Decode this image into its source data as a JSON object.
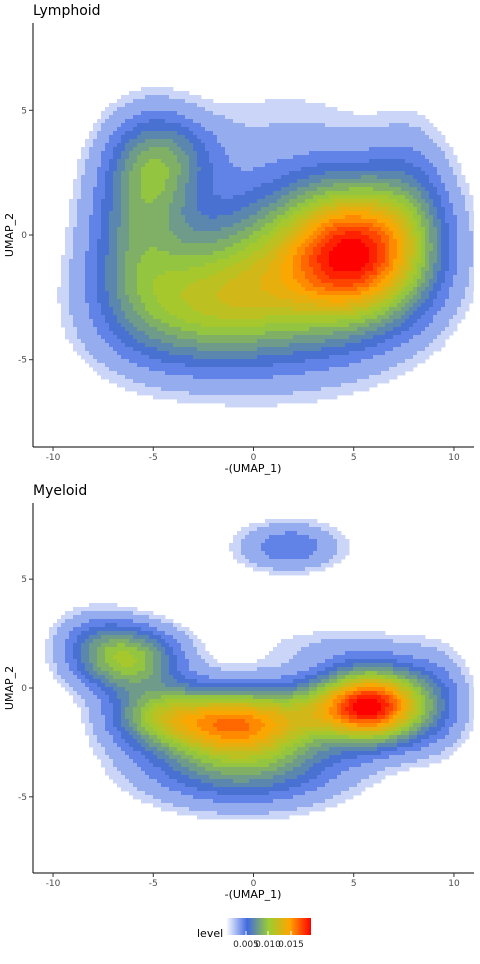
{
  "chart_data": [
    {
      "type": "density-contour",
      "title": "Lymphoid",
      "xlabel": "-(UMAP_1)",
      "ylabel": "UMAP_2",
      "xlim": [
        -11,
        11
      ],
      "ylim": [
        -8.5,
        8.5
      ],
      "xticks": [
        -10,
        -5,
        0,
        5,
        10
      ],
      "yticks": [
        -5,
        0,
        5
      ],
      "xtick_labels": [
        "-10",
        "-5",
        "0",
        "5",
        "10"
      ],
      "ytick_labels": [
        "-5",
        "0",
        "5"
      ],
      "components": [
        {
          "x": 5.2,
          "y": -0.7,
          "sx": 2.3,
          "sy": 1.8,
          "w": 1.0
        },
        {
          "x": 2.0,
          "y": -1.3,
          "sx": 3.5,
          "sy": 2.4,
          "w": 0.48
        },
        {
          "x": -1.5,
          "y": -2.6,
          "sx": 3.0,
          "sy": 1.7,
          "w": 0.4
        },
        {
          "x": -4.5,
          "y": -3.2,
          "sx": 2.6,
          "sy": 1.6,
          "w": 0.2
        },
        {
          "x": -5.0,
          "y": 2.7,
          "sx": 1.6,
          "sy": 1.5,
          "w": 0.4
        },
        {
          "x": -5.8,
          "y": -0.3,
          "sx": 1.7,
          "sy": 2.0,
          "w": 0.32
        },
        {
          "x": -3.2,
          "y": 3.3,
          "sx": 1.6,
          "sy": 1.0,
          "w": 0.1
        },
        {
          "x": 7.8,
          "y": 1.0,
          "sx": 1.4,
          "sy": 2.2,
          "w": 0.18
        },
        {
          "x": 1.5,
          "y": 4.6,
          "sx": 3.0,
          "sy": 1.4,
          "w": 0.045
        }
      ]
    },
    {
      "type": "density-contour",
      "title": "Myeloid",
      "xlabel": "-(UMAP_1)",
      "ylabel": "UMAP_2",
      "xlim": [
        -11,
        11
      ],
      "ylim": [
        -8.5,
        8.5
      ],
      "xticks": [
        -10,
        -5,
        0,
        5,
        10
      ],
      "yticks": [
        -5,
        0,
        5
      ],
      "xtick_labels": [
        "-10",
        "-5",
        "0",
        "5",
        "10"
      ],
      "ytick_labels": [
        "-5",
        "0",
        "5"
      ],
      "components": [
        {
          "x": 6.0,
          "y": -0.8,
          "sx": 1.7,
          "sy": 1.1,
          "w": 1.0
        },
        {
          "x": 3.5,
          "y": -0.9,
          "sx": 1.8,
          "sy": 0.9,
          "w": 0.25
        },
        {
          "x": -1.0,
          "y": -1.5,
          "sx": 2.6,
          "sy": 1.0,
          "w": 0.72
        },
        {
          "x": -4.8,
          "y": -1.2,
          "sx": 1.6,
          "sy": 0.9,
          "w": 0.3
        },
        {
          "x": -0.5,
          "y": -3.3,
          "sx": 3.2,
          "sy": 1.3,
          "w": 0.4
        },
        {
          "x": -6.3,
          "y": 1.3,
          "sx": 1.7,
          "sy": 1.0,
          "w": 0.5
        },
        {
          "x": -8.0,
          "y": 2.4,
          "sx": 1.3,
          "sy": 0.9,
          "w": 0.1
        },
        {
          "x": 1.8,
          "y": 6.5,
          "sx": 1.7,
          "sy": 0.75,
          "w": 0.18
        },
        {
          "x": 4.0,
          "y": 1.8,
          "sx": 3.0,
          "sy": 0.8,
          "w": 0.06
        },
        {
          "x": 9.0,
          "y": -0.6,
          "sx": 1.2,
          "sy": 1.5,
          "w": 0.14
        }
      ]
    }
  ],
  "legend": {
    "title": "level",
    "placement": "bottom",
    "labels": [
      "0.005",
      "0.010",
      "0.015"
    ],
    "stops": [
      "#ffffff",
      "#4169e1",
      "#9acd32",
      "#ffa500",
      "#ff0000"
    ]
  }
}
